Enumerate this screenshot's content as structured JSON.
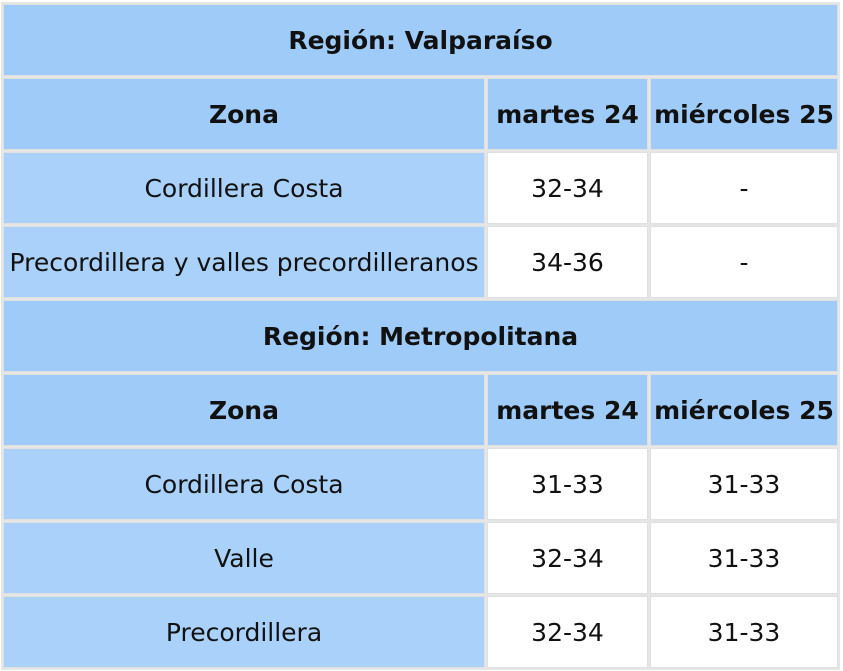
{
  "headers": {
    "zone": "Zona",
    "day1": "martes 24",
    "day2": "miércoles 25"
  },
  "regions": [
    {
      "title": "Región: Valparaíso",
      "rows": [
        {
          "zone": "Cordillera Costa",
          "day1": "32-34",
          "day2": "-"
        },
        {
          "zone": "Precordillera y valles precordilleranos",
          "day1": "34-36",
          "day2": "-"
        }
      ]
    },
    {
      "title": "Región: Metropolitana",
      "rows": [
        {
          "zone": "Cordillera Costa",
          "day1": "31-33",
          "day2": "31-33"
        },
        {
          "zone": "Valle",
          "day1": "32-34",
          "day2": "31-33"
        },
        {
          "zone": "Precordillera",
          "day1": "32-34",
          "day2": "31-33"
        }
      ]
    }
  ],
  "colors": {
    "header_bg": "#9fcbf9",
    "zone_bg": "#a9d1fa",
    "value_bg": "#ffffff",
    "empty_text": "#c4c4c4"
  }
}
